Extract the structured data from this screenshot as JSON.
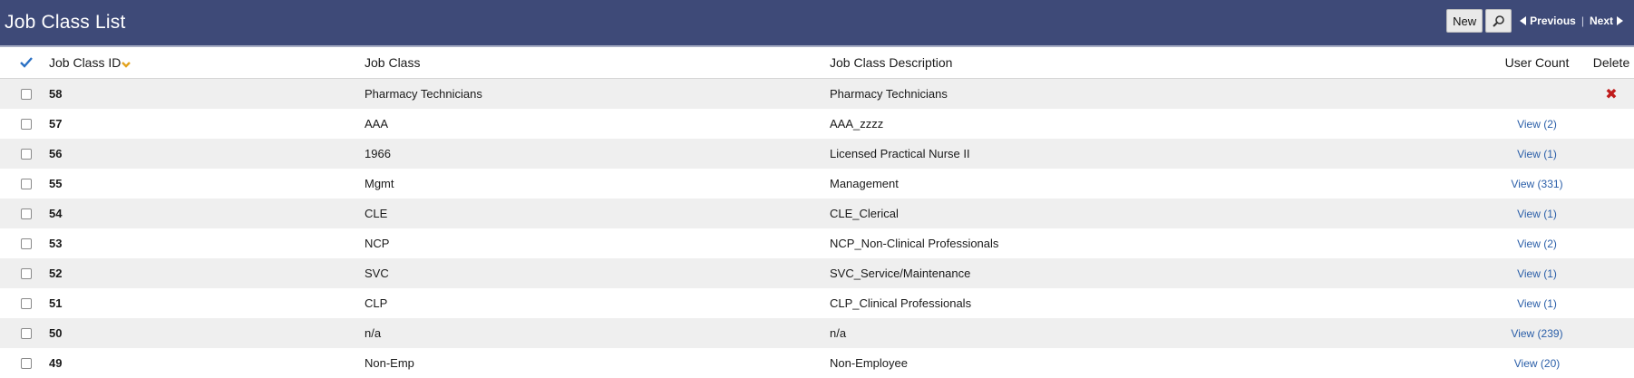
{
  "header": {
    "title": "Job Class List",
    "new_label": "New",
    "search_icon": "magnifier-icon",
    "previous_label": "Previous",
    "next_label": "Next",
    "separator": "|"
  },
  "columns": {
    "select_all_icon": "checkmark-icon",
    "id": "Job Class ID",
    "sort_icon": "sort-desc-icon",
    "job_class": "Job Class",
    "description": "Job Class Description",
    "user_count": "User Count",
    "delete": "Delete"
  },
  "rows": [
    {
      "id": "58",
      "job_class": "Pharmacy Technicians",
      "description": "Pharmacy Technicians",
      "user_count": "",
      "delete": "x"
    },
    {
      "id": "57",
      "job_class": "AAA",
      "description": "AAA_zzzz",
      "user_count": "View (2)",
      "delete": ""
    },
    {
      "id": "56",
      "job_class": "1966",
      "description": "Licensed Practical Nurse II",
      "user_count": "View (1)",
      "delete": ""
    },
    {
      "id": "55",
      "job_class": "Mgmt",
      "description": "Management",
      "user_count": "View (331)",
      "delete": ""
    },
    {
      "id": "54",
      "job_class": "CLE",
      "description": "CLE_Clerical",
      "user_count": "View (1)",
      "delete": ""
    },
    {
      "id": "53",
      "job_class": "NCP",
      "description": "NCP_Non-Clinical Professionals",
      "user_count": "View (2)",
      "delete": ""
    },
    {
      "id": "52",
      "job_class": "SVC",
      "description": "SVC_Service/Maintenance",
      "user_count": "View (1)",
      "delete": ""
    },
    {
      "id": "51",
      "job_class": "CLP",
      "description": "CLP_Clinical Professionals",
      "user_count": "View (1)",
      "delete": ""
    },
    {
      "id": "50",
      "job_class": "n/a",
      "description": "n/a",
      "user_count": "View (239)",
      "delete": ""
    },
    {
      "id": "49",
      "job_class": "Non-Emp",
      "description": "Non-Employee",
      "user_count": "View (20)",
      "delete": ""
    }
  ],
  "colors": {
    "header_bg": "#3e4a78",
    "link": "#2a5ea8",
    "delete": "#c01c1c",
    "sort_icon": "#e3a31e",
    "row_alt": "#efefef"
  }
}
